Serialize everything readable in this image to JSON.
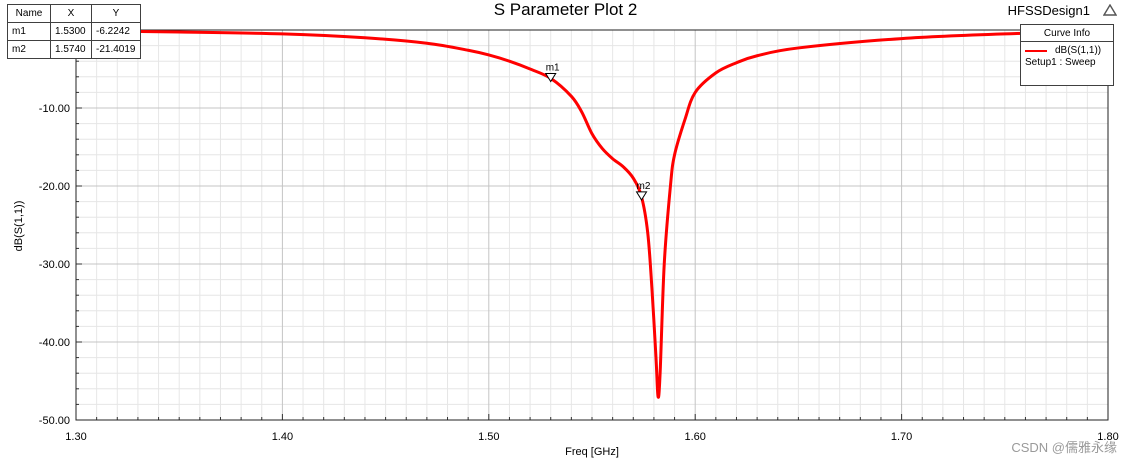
{
  "header": {
    "title": "S Parameter Plot 2",
    "design_name": "HFSSDesign1"
  },
  "marker_table": {
    "columns": [
      "Name",
      "X",
      "Y"
    ],
    "rows": [
      {
        "name": "m1",
        "x": "1.5300",
        "y": "-6.2242"
      },
      {
        "name": "m2",
        "x": "1.5740",
        "y": "-21.4019"
      }
    ]
  },
  "legend": {
    "header": "Curve Info",
    "entry": "dB(S(1,1))",
    "sub": "Setup1 : Sweep",
    "color": "#ff0000"
  },
  "watermark": "CSDN @儒雅永缘",
  "chart_data": {
    "type": "line",
    "xlabel": "Freq [GHz]",
    "ylabel": "dB(S(1,1))",
    "xlim": [
      1.3,
      1.8
    ],
    "ylim": [
      -50,
      0
    ],
    "x_ticks": [
      "1.30",
      "1.40",
      "1.50",
      "1.60",
      "1.70",
      "1.80"
    ],
    "y_ticks": [
      "-10.00",
      "-20.00",
      "-30.00",
      "-40.00",
      "-50.00"
    ],
    "grid": true,
    "series": [
      {
        "name": "dB(S(1,1))",
        "color": "#ff0000",
        "x": [
          1.3,
          1.35,
          1.4,
          1.44,
          1.47,
          1.49,
          1.5,
          1.51,
          1.52,
          1.53,
          1.54,
          1.545,
          1.55,
          1.555,
          1.56,
          1.565,
          1.57,
          1.574,
          1.577,
          1.579,
          1.581,
          1.582,
          1.583,
          1.585,
          1.588,
          1.59,
          1.595,
          1.6,
          1.61,
          1.62,
          1.63,
          1.65,
          1.7,
          1.75,
          1.8
        ],
        "y": [
          -0.1,
          -0.25,
          -0.5,
          -1.0,
          -1.7,
          -2.6,
          -3.2,
          -4.0,
          -5.0,
          -6.2,
          -8.5,
          -10.5,
          -13.3,
          -15.2,
          -16.5,
          -17.5,
          -19.0,
          -21.4,
          -26.0,
          -33.0,
          -42.0,
          -47.0,
          -44.0,
          -30.0,
          -20.0,
          -16.0,
          -11.5,
          -8.0,
          -5.5,
          -4.2,
          -3.3,
          -2.3,
          -1.1,
          -0.5,
          -0.2
        ]
      }
    ],
    "markers": [
      {
        "name": "m1",
        "x": 1.53,
        "y": -6.2242
      },
      {
        "name": "m2",
        "x": 1.574,
        "y": -21.4019
      }
    ]
  }
}
